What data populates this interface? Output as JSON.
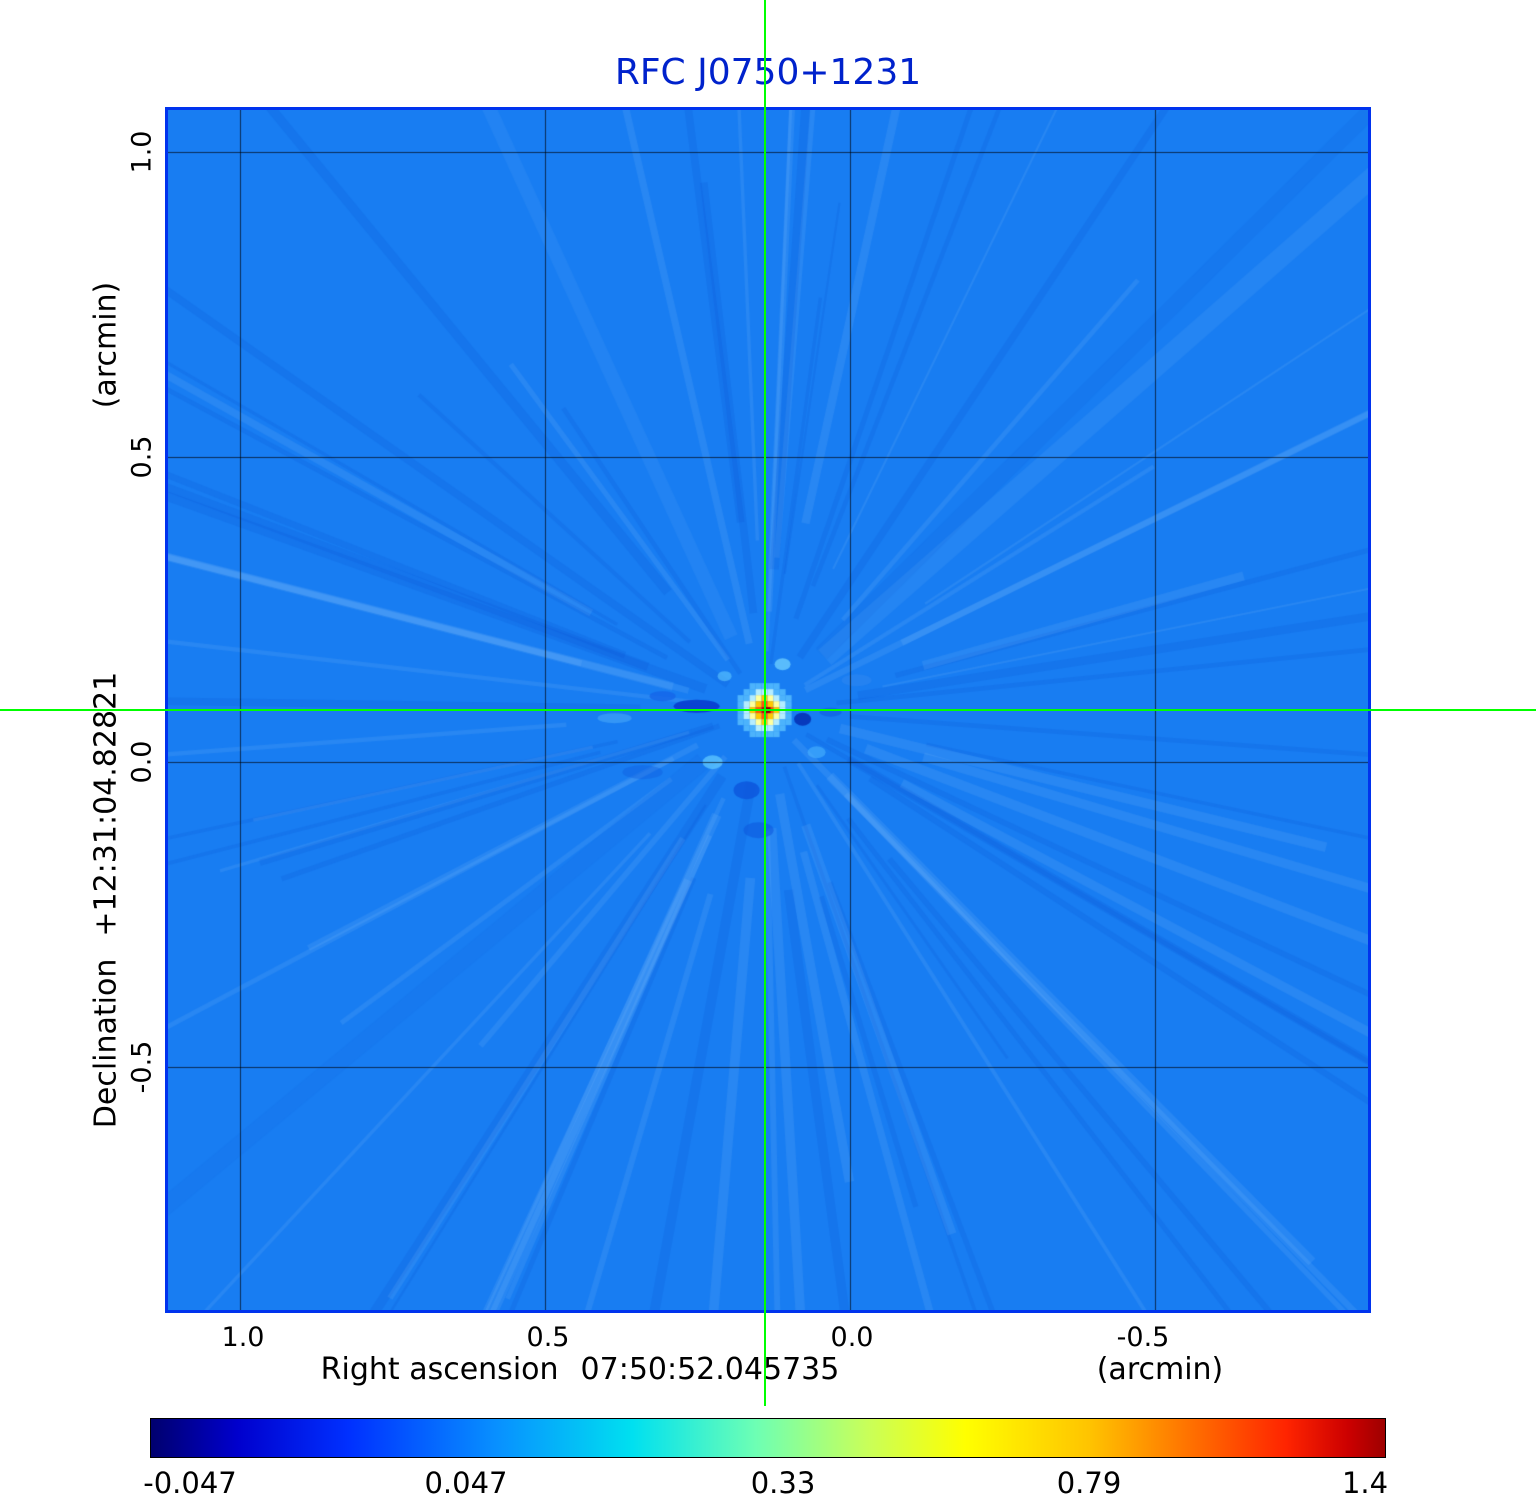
{
  "title": "RFC J0750+1231",
  "chart_data": {
    "type": "heatmap",
    "title": "RFC J0750+1231",
    "description": "Radio interferometric image (jet-like colormap) of source RFC J0750+1231 with green crosshair marking the source position",
    "xlabel": "Right ascension",
    "x_center_value": "07:50:52.045735",
    "x_unit": "(arcmin)",
    "ylabel": "Declination",
    "y_center_value": "+12:31:04.82821",
    "y_unit": "(arcmin)",
    "x_ticks": [
      "1.0",
      "0.5",
      "0.0",
      "-0.5"
    ],
    "y_ticks": [
      "1.0",
      "0.5",
      "0.0",
      "-0.5"
    ],
    "x_range_arcmin": [
      1.15,
      -0.85
    ],
    "y_range_arcmin": [
      1.07,
      -0.9
    ],
    "grid": true,
    "colorbar": {
      "ticks": [
        "-0.047",
        "0.047",
        "0.33",
        "0.79",
        "1.4"
      ],
      "min": -0.047,
      "max": 1.4,
      "scale": "asinh"
    },
    "source": {
      "ra_offset_arcmin": 0.14,
      "dec_offset_arcmin": 0.085,
      "peak_value": 1.4
    },
    "colors": {
      "background_sky": "#187df2",
      "title": "#0022cc",
      "crosshair": "#00ff00",
      "frame": "#0033ee",
      "grid": "rgba(0,0,0,0.65)"
    }
  }
}
